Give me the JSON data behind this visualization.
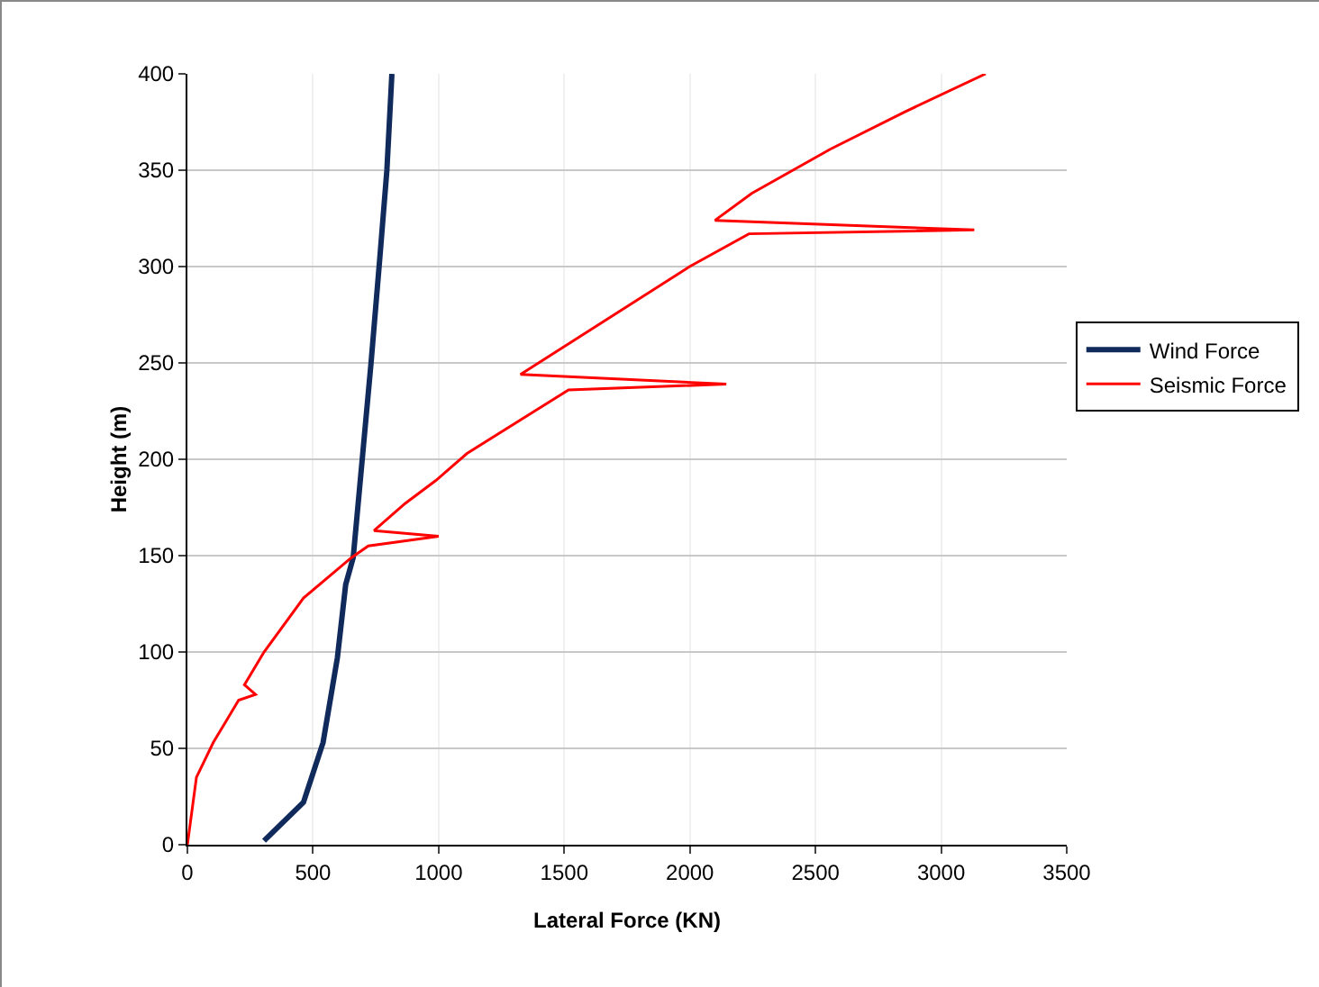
{
  "chart_data": {
    "type": "line",
    "xlabel": "Lateral Force (KN)",
    "ylabel": "Height (m)",
    "xlim": [
      0,
      3500
    ],
    "xticks": [
      0,
      500,
      1000,
      1500,
      2000,
      2500,
      3000,
      3500
    ],
    "ylim": [
      0,
      400
    ],
    "yticks": [
      0,
      50,
      100,
      150,
      200,
      250,
      300,
      350,
      400
    ],
    "grid": true,
    "legend": "right",
    "marker": "none",
    "series": [
      {
        "name": "Wind Force",
        "color": "#102a5c",
        "x": [
          305,
          462,
          540,
          597,
          630,
          660,
          698,
          731,
          765,
          794,
          814
        ],
        "values": [
          2,
          22,
          53,
          97,
          135,
          149,
          203,
          250,
          303,
          350,
          400
        ]
      },
      {
        "name": "Seismic Force",
        "color": "#ff0000",
        "x": [
          0,
          36,
          103,
          204,
          271,
          227,
          305,
          462,
          653,
          720,
          1000,
          743,
          866,
          989,
          1113,
          1382,
          1517,
          2145,
          1326,
          1662,
          1999,
          2235,
          3132,
          2100,
          2246,
          2560,
          2851,
          3177
        ],
        "values": [
          0,
          35,
          53,
          75,
          78,
          83,
          100,
          128,
          149,
          155,
          160,
          163,
          177,
          189,
          203,
          225,
          236,
          239,
          244,
          272,
          300,
          317,
          319,
          324,
          338,
          361,
          380,
          400
        ]
      }
    ]
  }
}
